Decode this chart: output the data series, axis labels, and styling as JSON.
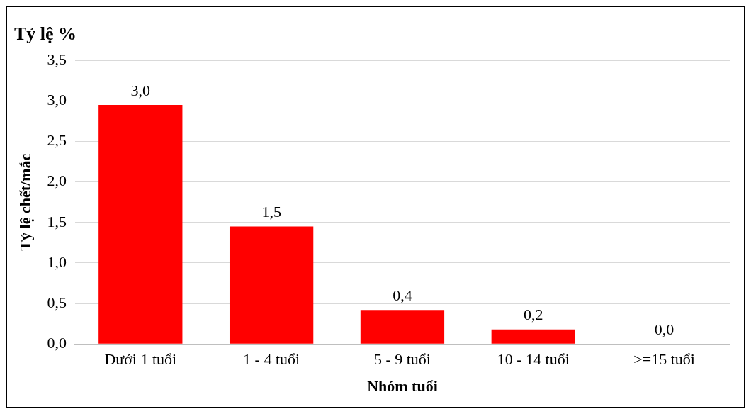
{
  "chart_data": {
    "type": "bar",
    "title": "Tỷ lệ %",
    "xlabel": "Nhóm tuổi",
    "ylabel": "Tỷ lệ chết/mắc",
    "categories": [
      "Dưới 1 tuổi",
      "1 - 4 tuổi",
      "5 - 9 tuổi",
      "10 - 14 tuổi",
      ">=15 tuổi"
    ],
    "values": [
      2.95,
      1.45,
      0.42,
      0.18,
      0
    ],
    "value_labels": [
      "3,0",
      "1,5",
      "0,4",
      "0,2",
      "0,0"
    ],
    "color": "#ff0000",
    "ylim": [
      0,
      3.5
    ],
    "yticks": [
      {
        "value": 0,
        "label": "0,0"
      },
      {
        "value": 0.5,
        "label": "0,5"
      },
      {
        "value": 1,
        "label": "1,0"
      },
      {
        "value": 1.5,
        "label": "1,5"
      },
      {
        "value": 2,
        "label": "2,0"
      },
      {
        "value": 2.5,
        "label": "2,5"
      },
      {
        "value": 3,
        "label": "3,0"
      },
      {
        "value": 3.5,
        "label": "3,5"
      }
    ],
    "grid": "y",
    "legend": false
  }
}
